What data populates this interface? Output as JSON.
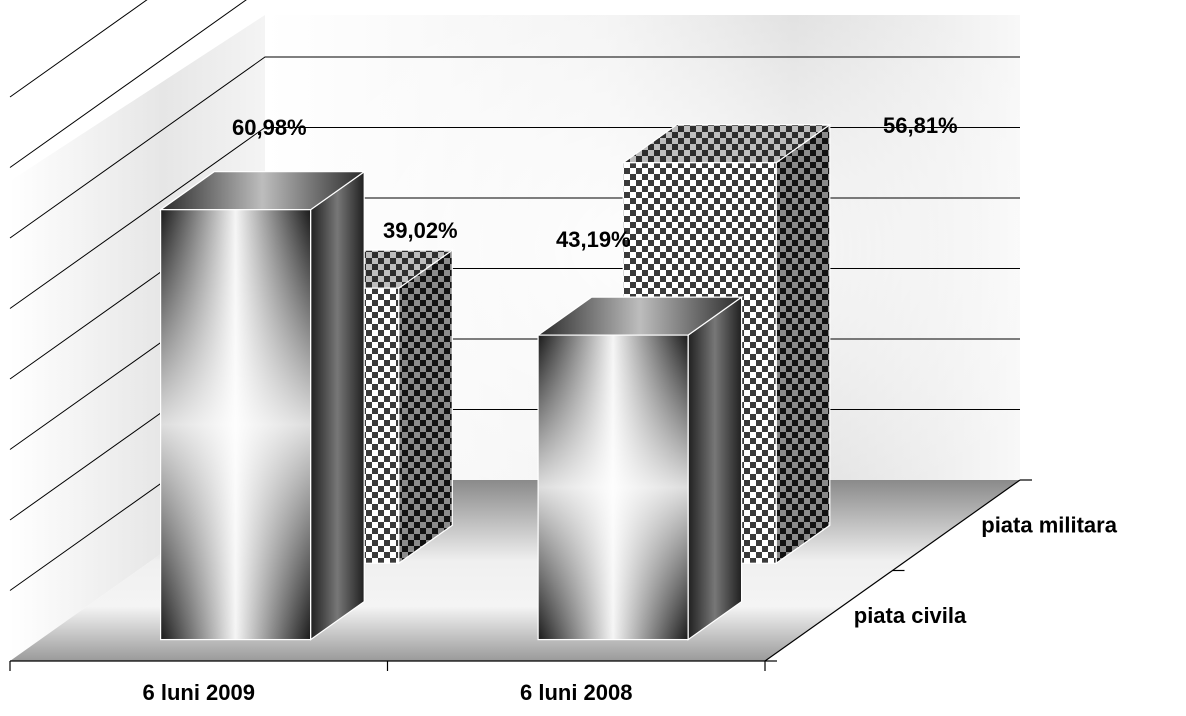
{
  "chart_data": {
    "type": "bar",
    "categories": [
      "6 luni 2009",
      "6 luni 2008"
    ],
    "series": [
      {
        "name": "piata civila",
        "values": [
          60.98,
          43.19
        ],
        "labels": [
          "60,98%",
          "43,19%"
        ]
      },
      {
        "name": "piata militara",
        "values": [
          39.02,
          56.81
        ],
        "labels": [
          "39,02%",
          "56,81%"
        ]
      }
    ],
    "ylim": [
      0,
      80
    ],
    "gridlines": true,
    "legend": "depth axis labels on the right",
    "style": "3d-column"
  }
}
